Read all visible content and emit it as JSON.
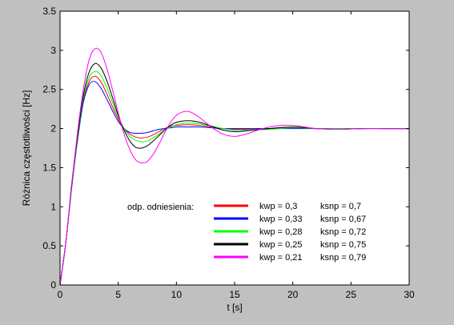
{
  "chart_data": {
    "type": "line",
    "xlabel": "t [s]",
    "ylabel": "Różnica częstotliwości [Hz]",
    "xlim": [
      0,
      30
    ],
    "ylim": [
      0,
      3.5
    ],
    "xticks": [
      0,
      5,
      10,
      15,
      20,
      25,
      30
    ],
    "xtick_labels": [
      "0",
      "5",
      "10",
      "15",
      "20",
      "25",
      "30"
    ],
    "yticks": [
      0,
      0.5,
      1,
      1.5,
      2,
      2.5,
      3,
      3.5
    ],
    "ytick_labels": [
      "0",
      "0.5",
      "1",
      "1.5",
      "2",
      "2.5",
      "3",
      "3.5"
    ],
    "grid": false,
    "legend": {
      "placement": "bottom-right",
      "title": "odp. odniesienia:",
      "entries": [
        {
          "kwp": "kwp = 0,3",
          "ksnp": "ksnp = 0,7",
          "color": "#ff0000"
        },
        {
          "kwp": "kwp = 0,33",
          "ksnp": "ksnp = 0,67",
          "color": "#0000ff"
        },
        {
          "kwp": "kwp = 0,28",
          "ksnp": "ksnp = 0,72",
          "color": "#00ff00"
        },
        {
          "kwp": "kwp = 0,25",
          "ksnp": "ksnp = 0,75",
          "color": "#000000"
        },
        {
          "kwp": "kwp = 0,21",
          "ksnp": "ksnp = 0,79",
          "color": "#ff00ff"
        }
      ]
    },
    "series": [
      {
        "color": "#ff0000",
        "x": [
          0,
          0.5,
          1,
          1.5,
          2,
          2.5,
          3,
          3.5,
          4,
          4.5,
          5,
          5.5,
          6,
          6.5,
          7,
          7.5,
          8,
          8.5,
          9,
          9.5,
          10,
          11,
          12,
          13,
          14,
          15,
          16,
          18,
          20,
          22,
          24,
          26,
          28,
          30
        ],
        "y": [
          0,
          0.55,
          1.25,
          1.85,
          2.35,
          2.6,
          2.67,
          2.6,
          2.45,
          2.28,
          2.12,
          2.0,
          1.93,
          1.89,
          1.88,
          1.89,
          1.92,
          1.96,
          2.0,
          2.03,
          2.04,
          2.05,
          2.04,
          2.02,
          2.0,
          1.99,
          1.99,
          2.0,
          2.01,
          2.0,
          2.0,
          2.0,
          2.0,
          2.0
        ]
      },
      {
        "color": "#0000ff",
        "x": [
          0,
          0.5,
          1,
          1.5,
          2,
          2.5,
          3,
          3.5,
          4,
          4.5,
          5,
          5.5,
          6,
          6.5,
          7,
          7.5,
          8,
          8.5,
          9,
          9.5,
          10,
          11,
          12,
          13,
          14,
          15,
          16,
          18,
          20,
          22,
          24,
          26,
          28,
          30
        ],
        "y": [
          0,
          0.55,
          1.25,
          1.85,
          2.33,
          2.56,
          2.6,
          2.52,
          2.38,
          2.23,
          2.09,
          2.0,
          1.95,
          1.94,
          1.94,
          1.95,
          1.97,
          1.99,
          2.0,
          2.01,
          2.02,
          2.02,
          2.02,
          2.01,
          2.0,
          2.0,
          2.0,
          2.0,
          2.0,
          2.0,
          2.0,
          2.0,
          2.0,
          2.0
        ]
      },
      {
        "color": "#00ff00",
        "x": [
          0,
          0.5,
          1,
          1.5,
          2,
          2.5,
          3,
          3.5,
          4,
          4.5,
          5,
          5.5,
          6,
          6.5,
          7,
          7.5,
          8,
          8.5,
          9,
          9.5,
          10,
          11,
          12,
          13,
          14,
          15,
          16,
          18,
          20,
          22,
          24,
          26,
          28,
          30
        ],
        "y": [
          0,
          0.55,
          1.25,
          1.87,
          2.38,
          2.65,
          2.73,
          2.68,
          2.53,
          2.34,
          2.15,
          2.0,
          1.9,
          1.85,
          1.83,
          1.84,
          1.88,
          1.93,
          1.98,
          2.02,
          2.05,
          2.07,
          2.06,
          2.03,
          2.0,
          1.98,
          1.98,
          1.99,
          2.01,
          2.0,
          2.0,
          2.0,
          2.0,
          2.0
        ]
      },
      {
        "color": "#000000",
        "x": [
          0,
          0.5,
          1,
          1.5,
          2,
          2.5,
          3,
          3.5,
          4,
          4.5,
          5,
          5.5,
          6,
          6.5,
          7,
          7.5,
          8,
          8.5,
          9,
          9.5,
          10,
          11,
          12,
          13,
          14,
          15,
          16,
          18,
          20,
          22,
          24,
          26,
          28,
          30
        ],
        "y": [
          0,
          0.55,
          1.27,
          1.9,
          2.42,
          2.72,
          2.83,
          2.78,
          2.62,
          2.4,
          2.17,
          1.98,
          1.84,
          1.76,
          1.75,
          1.78,
          1.84,
          1.91,
          1.98,
          2.04,
          2.08,
          2.1,
          2.08,
          2.03,
          1.98,
          1.96,
          1.97,
          2.0,
          2.02,
          2.0,
          1.99,
          2.0,
          2.0,
          2.0
        ]
      },
      {
        "color": "#ff00ff",
        "x": [
          0,
          0.5,
          1,
          1.5,
          2,
          2.5,
          3,
          3.5,
          4,
          4.5,
          5,
          5.5,
          6,
          6.5,
          7,
          7.5,
          8,
          8.5,
          9,
          9.5,
          10,
          10.5,
          11,
          11.5,
          12,
          13,
          14,
          15,
          16,
          17,
          18,
          19,
          20,
          21,
          22,
          24,
          26,
          28,
          30
        ],
        "y": [
          0,
          0.55,
          1.3,
          1.95,
          2.5,
          2.88,
          3.02,
          2.98,
          2.78,
          2.5,
          2.2,
          1.93,
          1.73,
          1.6,
          1.56,
          1.58,
          1.67,
          1.8,
          1.95,
          2.08,
          2.17,
          2.21,
          2.22,
          2.19,
          2.14,
          2.02,
          1.93,
          1.9,
          1.93,
          1.98,
          2.02,
          2.04,
          2.04,
          2.02,
          2.0,
          1.99,
          2.0,
          2.0,
          2.0
        ]
      }
    ]
  }
}
